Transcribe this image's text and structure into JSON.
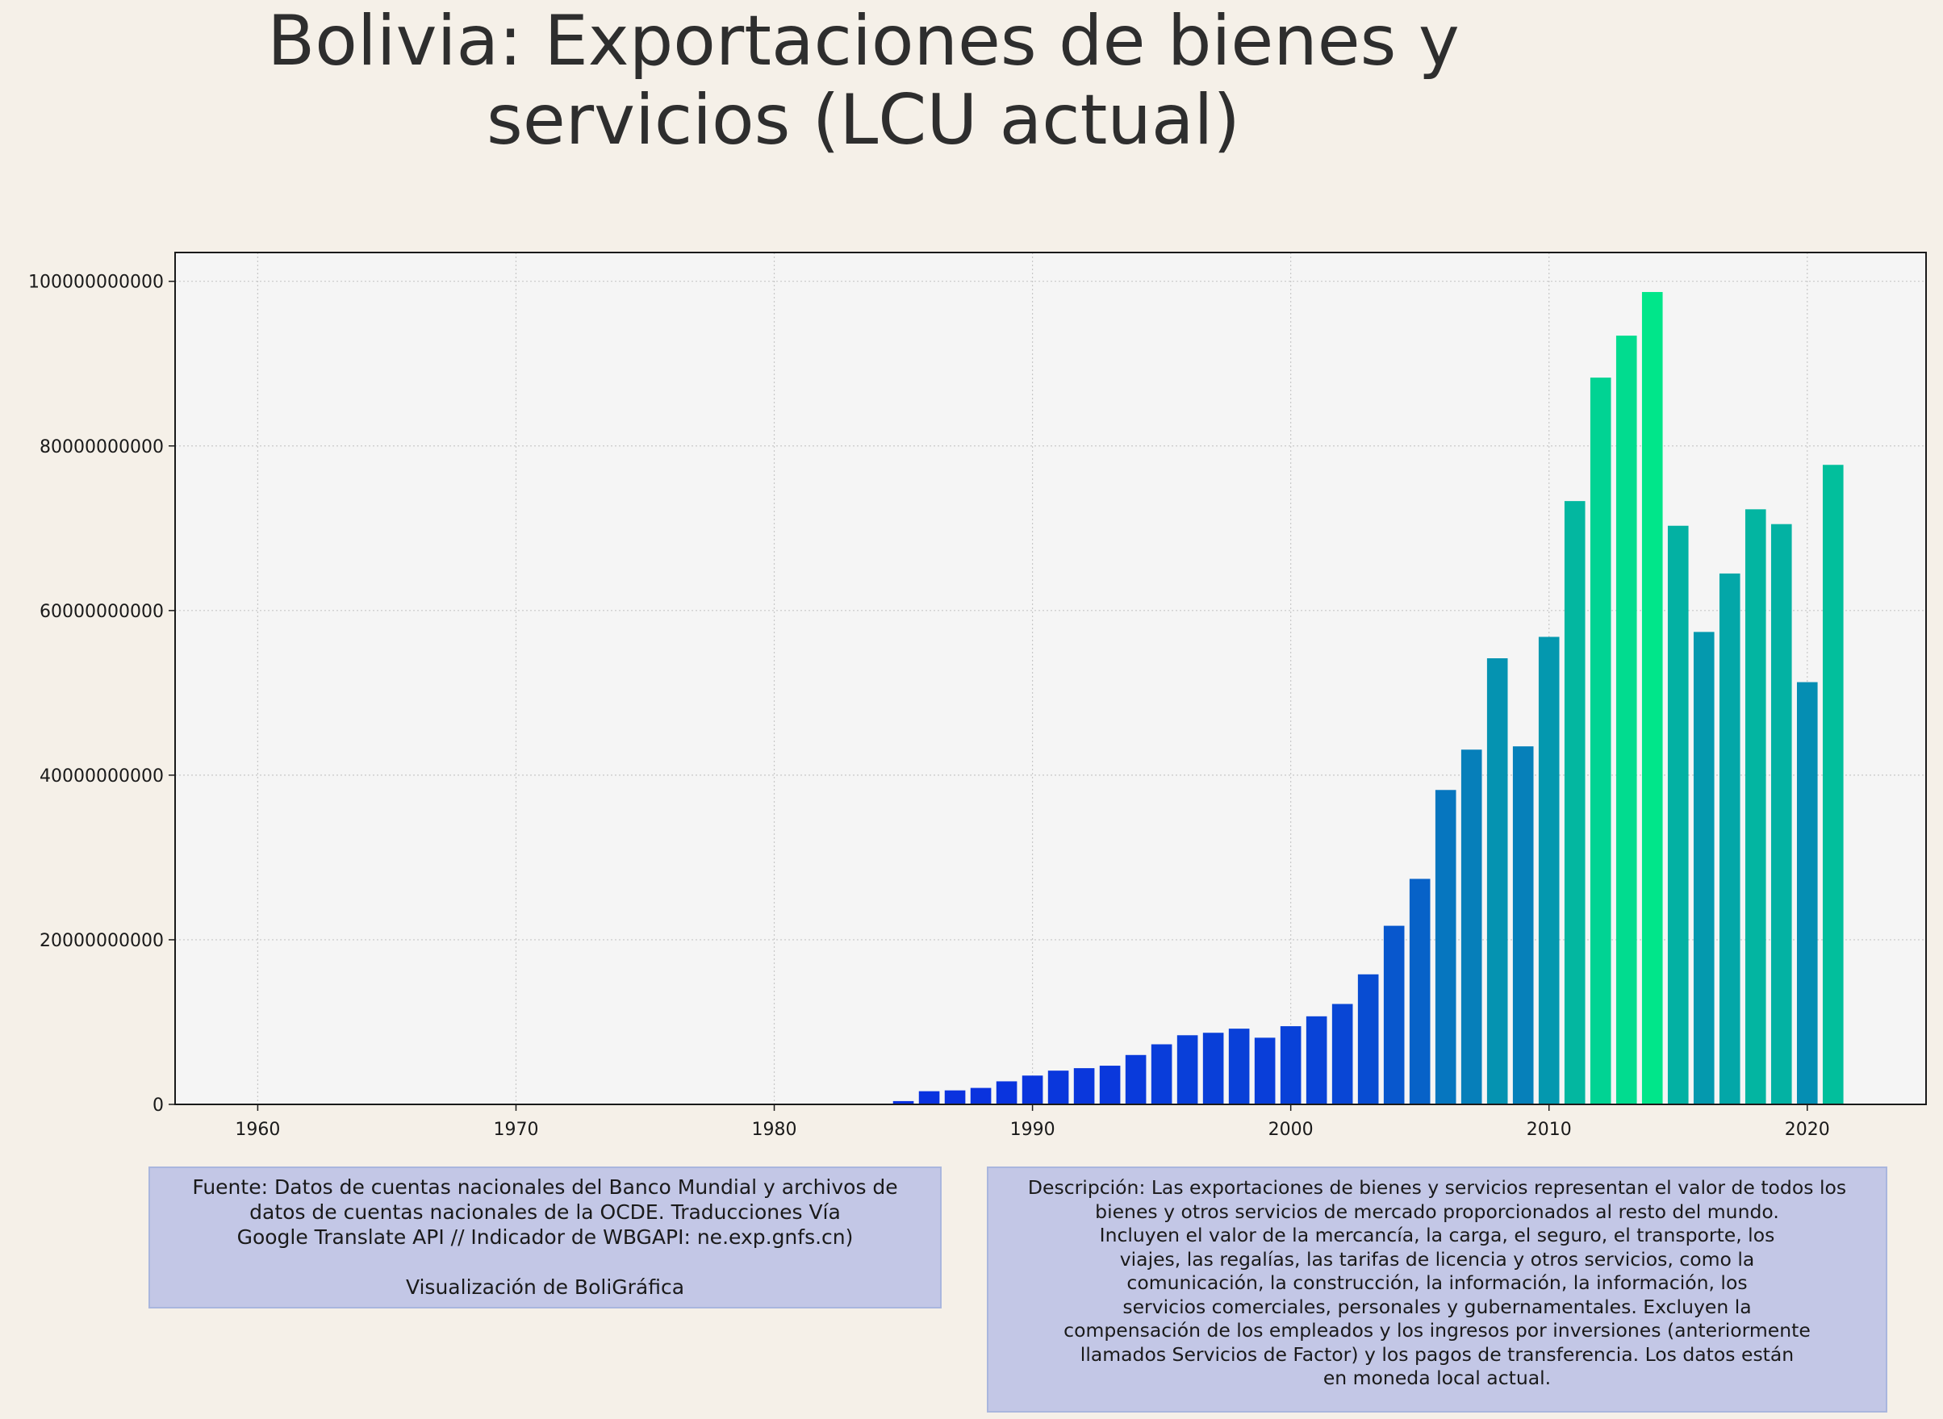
{
  "chart_data": {
    "type": "bar",
    "title": "Bolivia:  Exportaciones de bienes y servicios (LCU actual)",
    "xlabel": "",
    "ylabel": "",
    "x": [
      1960,
      1961,
      1962,
      1963,
      1964,
      1965,
      1966,
      1967,
      1968,
      1969,
      1970,
      1971,
      1972,
      1973,
      1974,
      1975,
      1976,
      1977,
      1978,
      1979,
      1980,
      1981,
      1982,
      1983,
      1984,
      1985,
      1986,
      1987,
      1988,
      1989,
      1990,
      1991,
      1992,
      1993,
      1994,
      1995,
      1996,
      1997,
      1998,
      1999,
      2000,
      2001,
      2002,
      2003,
      2004,
      2005,
      2006,
      2007,
      2008,
      2009,
      2010,
      2011,
      2012,
      2013,
      2014,
      2015,
      2016,
      2017,
      2018,
      2019,
      2020,
      2021
    ],
    "values": [
      0,
      0,
      0,
      0,
      0,
      0,
      0,
      0,
      0,
      0,
      0,
      0,
      0,
      0,
      0,
      0,
      0,
      0,
      0,
      0,
      0,
      0,
      0,
      0,
      0,
      400000000,
      1600000000,
      1700000000,
      2000000000,
      2800000000,
      3500000000,
      4100000000,
      4400000000,
      4700000000,
      6000000000,
      7300000000,
      8400000000,
      8700000000,
      9200000000,
      8100000000,
      9500000000,
      10700000000,
      12200000000,
      15800000000,
      21700000000,
      27400000000,
      38200000000,
      43100000000,
      54200000000,
      43500000000,
      56800000000,
      73300000000,
      88300000000,
      93400000000,
      98700000000,
      70300000000,
      57400000000,
      64500000000,
      72300000000,
      70500000000,
      51300000000,
      77700000000
    ],
    "xlim": [
      1956.8,
      2024.6
    ],
    "ylim": [
      0,
      103500000000
    ],
    "xticks": [
      1960,
      1970,
      1980,
      1990,
      2000,
      2010,
      2020
    ],
    "yticks": [
      0,
      20000000000,
      40000000000,
      60000000000,
      80000000000,
      100000000000
    ],
    "ytick_labels": [
      "0",
      "20000000000",
      "40000000000",
      "60000000000",
      "80000000000",
      "100000000000"
    ],
    "grid": true,
    "colormap": "winter",
    "colors": {
      "low": "#0a2fe0",
      "high": "#00e68a",
      "plot_background": "#f5f5f5",
      "page_background": "#f5f0e8",
      "grid": "#c8c8c8"
    }
  },
  "notes": {
    "source": "Fuente: Datos de cuentas nacionales del Banco Mundial y archivos de\ndatos de cuentas nacionales de la OCDE. Traducciones Vía\nGoogle Translate API // Indicador de WBGAPI: ne.exp.gnfs.cn)\n\nVisualización de BoliGráfica",
    "description": "Descripción: Las exportaciones de bienes y servicios representan el valor de todos los\nbienes y otros servicios de mercado proporcionados al resto del mundo.\nIncluyen el valor de la mercancía, la carga, el seguro, el transporte, los\nviajes, las regalías, las tarifas de licencia y otros servicios, como la\ncomunicación, la construcción, la información, la información, los\nservicios comerciales, personales y gubernamentales. Excluyen la\ncompensación de los empleados y los ingresos por inversiones (anteriormente\nllamados Servicios de Factor) y los pagos de transferencia. Los datos están\nen moneda local actual."
  }
}
